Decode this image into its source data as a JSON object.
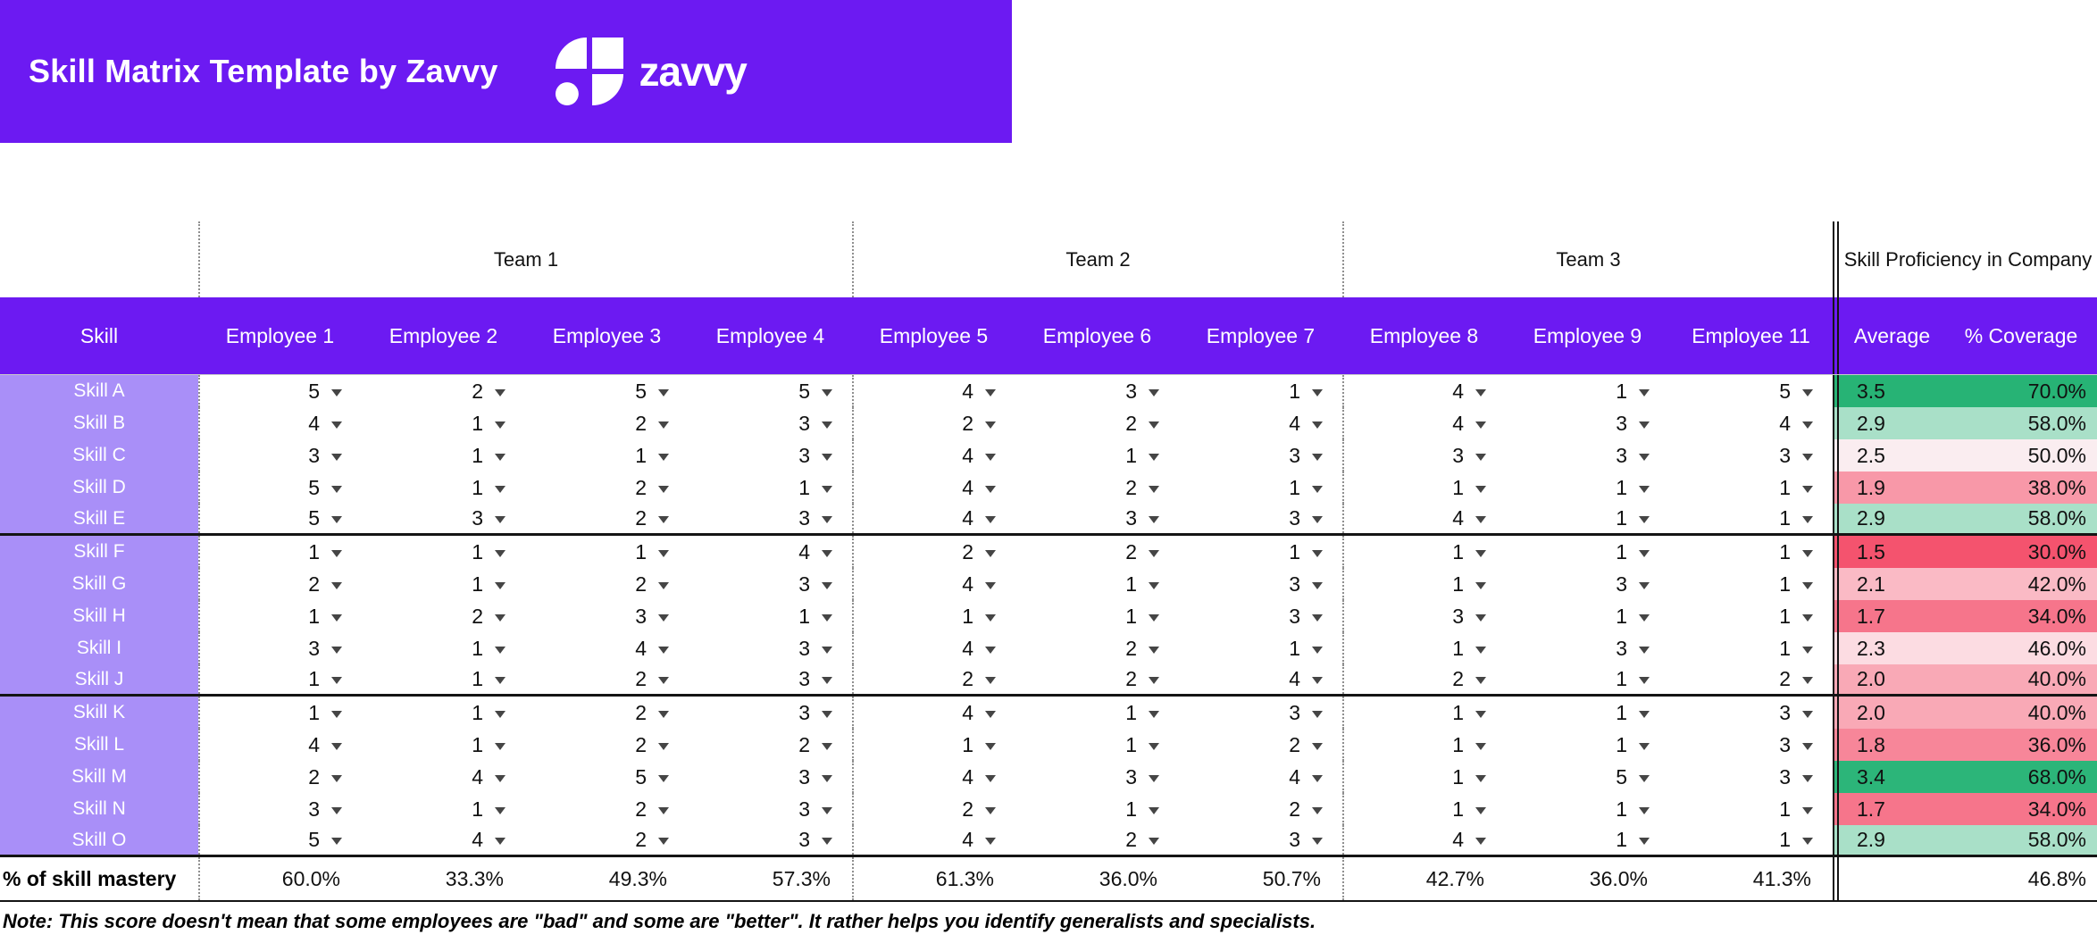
{
  "banner": {
    "title": "Skill Matrix Template by Zavvy",
    "logo_text": "zavvy"
  },
  "colors": {
    "brand_purple": "#6C1AF2",
    "skill_cell_purple": "#A98FF8",
    "scale_max_green": "#27B375",
    "scale_min_red": "#F4536E"
  },
  "table": {
    "team_headers": [
      {
        "label": "",
        "span": 1
      },
      {
        "label": "Team 1",
        "span": 4
      },
      {
        "label": "Team 2",
        "span": 3
      },
      {
        "label": "Team 3",
        "span": 3
      },
      {
        "label": "Skill Proficiency in Company",
        "span": 2
      }
    ],
    "columns": [
      "Skill",
      "Employee 1",
      "Employee 2",
      "Employee 3",
      "Employee 4",
      "Employee 5",
      "Employee 6",
      "Employee 7",
      "Employee 8",
      "Employee 9",
      "Employee 11",
      "Average",
      "% Coverage"
    ],
    "rows": [
      {
        "skill": "Skill A",
        "scores": [
          5,
          2,
          5,
          5,
          4,
          3,
          1,
          4,
          1,
          5
        ],
        "average": "3.5",
        "coverage": "70.0%",
        "color": "#27B375"
      },
      {
        "skill": "Skill B",
        "scores": [
          4,
          1,
          2,
          3,
          2,
          2,
          4,
          4,
          3,
          4
        ],
        "average": "2.9",
        "coverage": "58.0%",
        "color": "#A9E0C8"
      },
      {
        "skill": "Skill C",
        "scores": [
          3,
          1,
          1,
          3,
          4,
          1,
          3,
          3,
          3,
          3
        ],
        "average": "2.5",
        "coverage": "50.0%",
        "color": "#FAEDF0"
      },
      {
        "skill": "Skill D",
        "scores": [
          5,
          1,
          2,
          1,
          4,
          2,
          1,
          1,
          1,
          1
        ],
        "average": "1.9",
        "coverage": "38.0%",
        "color": "#F898A8"
      },
      {
        "skill": "Skill E",
        "scores": [
          5,
          3,
          2,
          3,
          4,
          3,
          3,
          4,
          1,
          1
        ],
        "average": "2.9",
        "coverage": "58.0%",
        "color": "#A9E0C8"
      },
      {
        "skill": "Skill F",
        "scores": [
          1,
          1,
          1,
          4,
          2,
          2,
          1,
          1,
          1,
          1
        ],
        "average": "1.5",
        "coverage": "30.0%",
        "color": "#F4536E"
      },
      {
        "skill": "Skill G",
        "scores": [
          2,
          1,
          2,
          3,
          4,
          1,
          3,
          1,
          3,
          1
        ],
        "average": "2.1",
        "coverage": "42.0%",
        "color": "#FABAC5"
      },
      {
        "skill": "Skill H",
        "scores": [
          1,
          2,
          3,
          1,
          1,
          1,
          3,
          3,
          1,
          1
        ],
        "average": "1.7",
        "coverage": "34.0%",
        "color": "#F6758B"
      },
      {
        "skill": "Skill I",
        "scores": [
          3,
          1,
          4,
          3,
          4,
          2,
          1,
          1,
          3,
          1
        ],
        "average": "2.3",
        "coverage": "46.0%",
        "color": "#FCDCE2"
      },
      {
        "skill": "Skill J",
        "scores": [
          1,
          1,
          2,
          3,
          2,
          2,
          4,
          2,
          1,
          2
        ],
        "average": "2.0",
        "coverage": "40.0%",
        "color": "#F9A9B6"
      },
      {
        "skill": "Skill K",
        "scores": [
          1,
          1,
          2,
          3,
          4,
          1,
          3,
          1,
          1,
          3
        ],
        "average": "2.0",
        "coverage": "40.0%",
        "color": "#F9A9B6"
      },
      {
        "skill": "Skill L",
        "scores": [
          4,
          1,
          2,
          2,
          1,
          1,
          2,
          1,
          1,
          3
        ],
        "average": "1.8",
        "coverage": "36.0%",
        "color": "#F78699"
      },
      {
        "skill": "Skill M",
        "scores": [
          2,
          4,
          5,
          3,
          4,
          3,
          4,
          1,
          5,
          3
        ],
        "average": "3.4",
        "coverage": "68.0%",
        "color": "#2CB579"
      },
      {
        "skill": "Skill N",
        "scores": [
          3,
          1,
          2,
          3,
          2,
          1,
          2,
          1,
          1,
          1
        ],
        "average": "1.7",
        "coverage": "34.0%",
        "color": "#F6758B"
      },
      {
        "skill": "Skill O",
        "scores": [
          5,
          4,
          2,
          3,
          4,
          2,
          3,
          4,
          1,
          1
        ],
        "average": "2.9",
        "coverage": "58.0%",
        "color": "#A9E0C8"
      }
    ],
    "mastery": {
      "label": "% of skill mastery",
      "values": [
        "60.0%",
        "33.3%",
        "49.3%",
        "57.3%",
        "61.3%",
        "36.0%",
        "50.7%",
        "42.7%",
        "36.0%",
        "41.3%"
      ],
      "total_coverage": "46.8%"
    }
  },
  "note": "Note: This score doesn't mean that some employees are \"bad\" and some are \"better\". It rather helps you identify generalists and specialists."
}
